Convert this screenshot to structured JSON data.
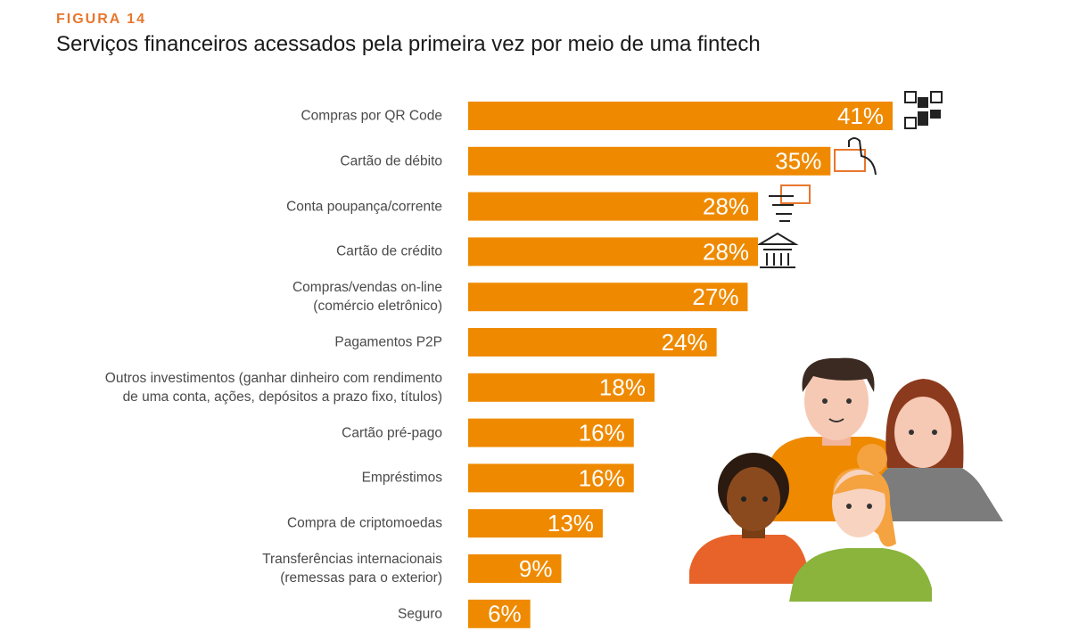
{
  "chart_data": {
    "type": "bar",
    "orientation": "horizontal",
    "label": "FIGURA 14",
    "title": "Serviços financeiros acessados pela primeira vez por meio de uma fintech",
    "categories": [
      "Compras por QR Code",
      "Cartão de débito",
      "Conta poupança/corrente",
      "Cartão de crédito",
      "Compras/vendas on-line\n(comércio eletrônico)",
      "Pagamentos P2P",
      "Outros investimentos (ganhar dinheiro com rendimento\nde uma conta, ações, depósitos a prazo fixo, títulos)",
      "Cartão pré-pago",
      "Empréstimos",
      "Compra de criptomoedas",
      "Transferências internacionais\n(remessas para o exterior)",
      "Seguro"
    ],
    "values": [
      41,
      35,
      28,
      28,
      27,
      24,
      18,
      16,
      16,
      13,
      9,
      6
    ],
    "value_labels": [
      "41%",
      "35%",
      "28%",
      "28%",
      "27%",
      "24%",
      "18%",
      "16%",
      "16%",
      "13%",
      "9%",
      "6%"
    ],
    "color": "#ef8a00"
  }
}
